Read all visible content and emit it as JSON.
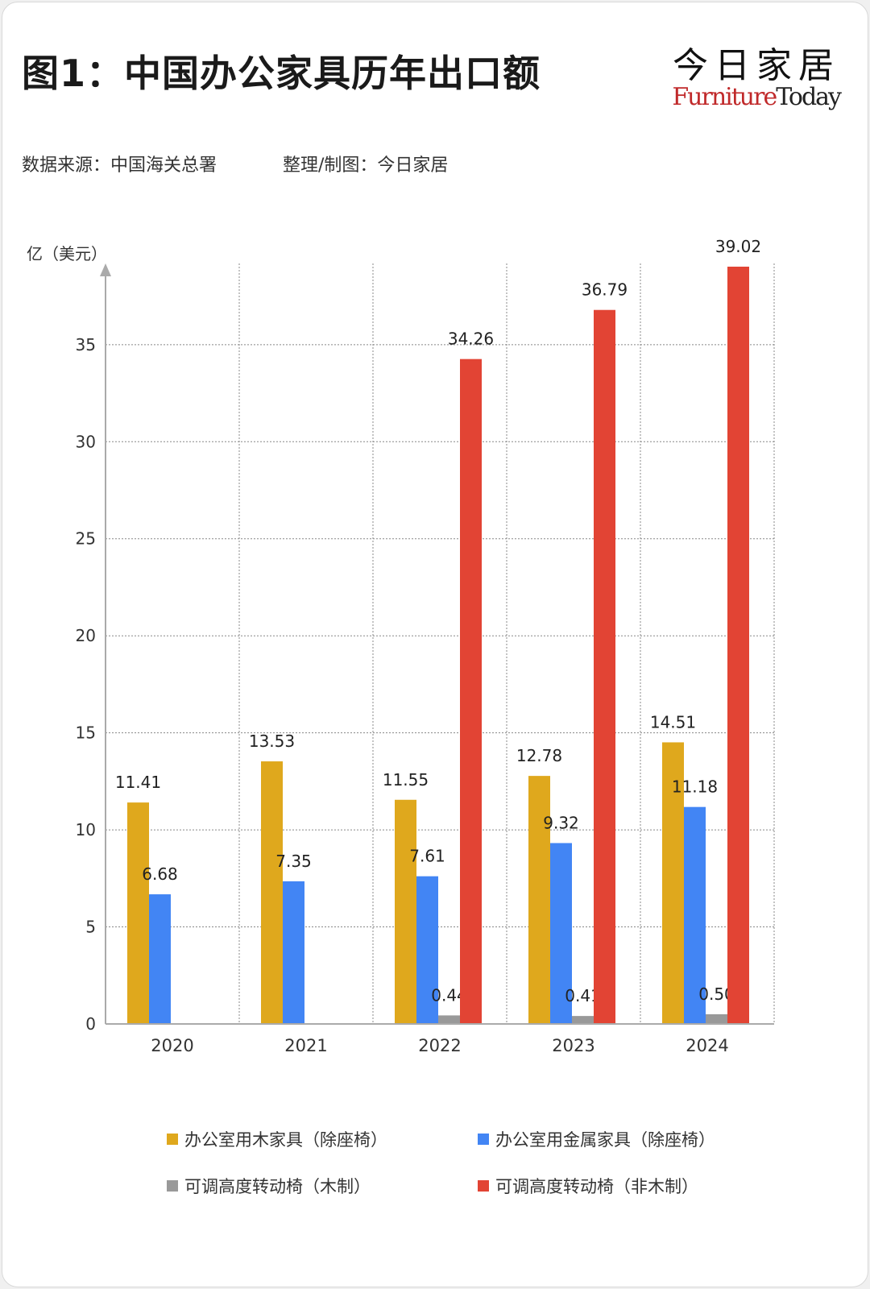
{
  "header": {
    "title": "图1：中国办公家具历年出口额",
    "logo_cn": "今日家居",
    "logo_en_a": "Furniture",
    "logo_en_b": "Today",
    "source": "数据来源：中国海关总署",
    "credit": "整理/制图：今日家居"
  },
  "colors": {
    "wood": "#dfa81d",
    "metal": "#4285f4",
    "chair_wood": "#999999",
    "chair_nonwood": "#e24434"
  },
  "chart_data": {
    "type": "bar",
    "unit_label": "亿（美元）",
    "categories": [
      "2020",
      "2021",
      "2022",
      "2023",
      "2024"
    ],
    "ylim": [
      0,
      39.02
    ],
    "yticks": [
      0,
      5,
      10,
      15,
      20,
      25,
      30,
      35
    ],
    "grid": true,
    "legend_position": "bottom",
    "series": [
      {
        "name": "办公室用木家具（除座椅）",
        "values": [
          11.41,
          13.53,
          11.55,
          12.78,
          14.51
        ],
        "labels": [
          "11.41",
          "13.53",
          "11.55",
          "12.78",
          "14.51"
        ]
      },
      {
        "name": "办公室用金属家具（除座椅）",
        "values": [
          6.68,
          7.35,
          7.61,
          9.32,
          11.18
        ],
        "labels": [
          "6.68",
          "7.35",
          "7.61",
          "9.32",
          "11.18"
        ]
      },
      {
        "name": "可调高度转动椅（木制）",
        "values": [
          0,
          0,
          0.44,
          0.41,
          0.5
        ],
        "labels": [
          "",
          "",
          "0.44",
          "0.41",
          "0.50"
        ]
      },
      {
        "name": "可调高度转动椅（非木制）",
        "values": [
          0,
          0,
          34.26,
          36.79,
          39.02
        ],
        "labels": [
          "",
          "",
          "34.26",
          "36.79",
          "39.02"
        ]
      }
    ]
  }
}
